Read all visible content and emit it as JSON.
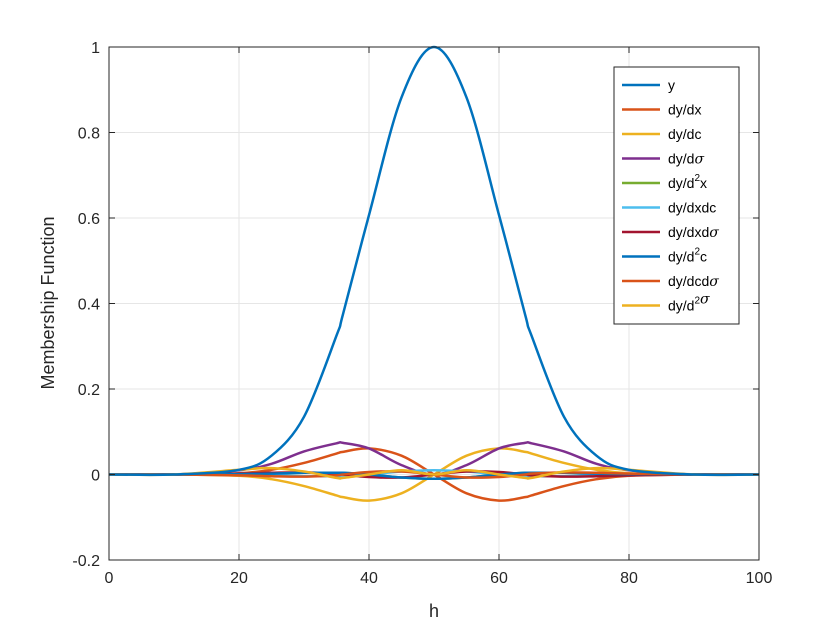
{
  "chart_data": {
    "type": "line",
    "xlabel": "h",
    "ylabel": "Membership Function",
    "xlim": [
      0,
      100
    ],
    "ylim": [
      -0.2,
      1
    ],
    "xticks": [
      "0",
      "20",
      "40",
      "60",
      "80",
      "100"
    ],
    "yticks": [
      "-0.2",
      "0",
      "0.2",
      "0.4",
      "0.6",
      "0.8",
      "1"
    ],
    "grid": true,
    "legend_position": "top-right",
    "gaussian": {
      "center": 50,
      "sigma": 10
    },
    "x": [
      0,
      10,
      20,
      25,
      30,
      35,
      36,
      40,
      45,
      50,
      55,
      60,
      64,
      65,
      70,
      75,
      80,
      90,
      100
    ],
    "series": [
      {
        "name": "y",
        "legend": {
          "pre": "y",
          "sup": "",
          "mid": "",
          "greek": ""
        },
        "color": "#0072BD",
        "values": [
          0.0,
          0.0,
          0.011,
          0.044,
          0.135,
          0.325,
          0.375,
          0.607,
          0.882,
          1.0,
          0.882,
          0.607,
          0.375,
          0.325,
          0.135,
          0.044,
          0.011,
          0.0,
          0.0
        ]
      },
      {
        "name": "dy/dx",
        "legend": {
          "pre": "dy/dx",
          "sup": "",
          "mid": "",
          "greek": ""
        },
        "color": "#D95319",
        "values": [
          0.0,
          0.0,
          0.003,
          0.011,
          0.027,
          0.049,
          0.053,
          0.061,
          0.044,
          0.0,
          -0.044,
          -0.061,
          -0.053,
          -0.049,
          -0.027,
          -0.011,
          -0.003,
          0.0,
          0.0
        ]
      },
      {
        "name": "dy/dc",
        "legend": {
          "pre": "dy/dc",
          "sup": "",
          "mid": "",
          "greek": ""
        },
        "color": "#EDB120",
        "values": [
          0.0,
          0.0,
          -0.003,
          -0.011,
          -0.027,
          -0.049,
          -0.053,
          -0.061,
          -0.044,
          0.0,
          0.044,
          0.061,
          0.053,
          0.049,
          0.027,
          0.011,
          0.003,
          0.0,
          0.0
        ]
      },
      {
        "name": "dy/dσ",
        "legend": {
          "pre": "dy/d",
          "sup": "",
          "mid": "",
          "greek": "σ"
        },
        "color": "#7E2F8E",
        "values": [
          0.0,
          0.0,
          0.01,
          0.025,
          0.054,
          0.073,
          0.074,
          0.061,
          0.022,
          0.0,
          0.022,
          0.061,
          0.074,
          0.073,
          0.054,
          0.025,
          0.01,
          0.0,
          0.0
        ]
      },
      {
        "name": "dy/d²x",
        "legend": {
          "pre": "dy/d",
          "sup": "2",
          "mid": "x",
          "greek": ""
        },
        "color": "#77AC30",
        "values": [
          0.0,
          0.0,
          0.001,
          0.002,
          0.004,
          0.004,
          0.004,
          0.0,
          -0.007,
          -0.01,
          -0.007,
          0.0,
          0.004,
          0.004,
          0.004,
          0.002,
          0.001,
          0.0,
          0.0
        ]
      },
      {
        "name": "dy/dxdc",
        "legend": {
          "pre": "dy/dxdc",
          "sup": "",
          "mid": "",
          "greek": ""
        },
        "color": "#4DBEEE",
        "values": [
          0.0,
          0.0,
          -0.001,
          -0.002,
          -0.004,
          -0.004,
          -0.004,
          0.0,
          0.007,
          0.01,
          0.007,
          0.0,
          -0.004,
          -0.004,
          -0.004,
          -0.002,
          -0.001,
          0.0,
          0.0
        ]
      },
      {
        "name": "dy/dxdσ",
        "legend": {
          "pre": "dy/dxd",
          "sup": "",
          "mid": "",
          "greek": "σ"
        },
        "color": "#A2142F",
        "values": [
          0.0,
          0.0,
          0.002,
          0.004,
          0.005,
          0.002,
          0.0,
          -0.006,
          -0.007,
          0.0,
          0.007,
          0.006,
          0.0,
          -0.002,
          -0.005,
          -0.004,
          -0.002,
          0.0,
          0.0
        ]
      },
      {
        "name": "dy/d²c",
        "legend": {
          "pre": "dy/d",
          "sup": "2",
          "mid": "c",
          "greek": ""
        },
        "color": "#0072BD",
        "values": [
          0.0,
          0.0,
          0.001,
          0.002,
          0.004,
          0.004,
          0.004,
          0.0,
          -0.007,
          -0.01,
          -0.007,
          0.0,
          0.004,
          0.004,
          0.004,
          0.002,
          0.001,
          0.0,
          0.0
        ]
      },
      {
        "name": "dy/dcdσ",
        "legend": {
          "pre": "dy/dcd",
          "sup": "",
          "mid": "",
          "greek": "σ"
        },
        "color": "#D95319",
        "values": [
          0.0,
          0.0,
          -0.002,
          -0.004,
          -0.005,
          -0.002,
          0.0,
          0.006,
          0.007,
          0.0,
          -0.007,
          -0.006,
          0.0,
          0.002,
          0.005,
          0.004,
          0.002,
          0.0,
          0.0
        ]
      },
      {
        "name": "dy/d²σ",
        "legend": {
          "pre": "dy/d",
          "sup": "2",
          "mid": "",
          "greek": "σ"
        },
        "color": "#EDB120",
        "values": [
          0.0,
          0.0,
          0.011,
          0.015,
          0.007,
          -0.008,
          -0.008,
          0.0,
          0.01,
          0.0,
          0.01,
          0.0,
          -0.008,
          -0.008,
          0.007,
          0.015,
          0.011,
          0.0,
          0.0
        ]
      }
    ]
  }
}
